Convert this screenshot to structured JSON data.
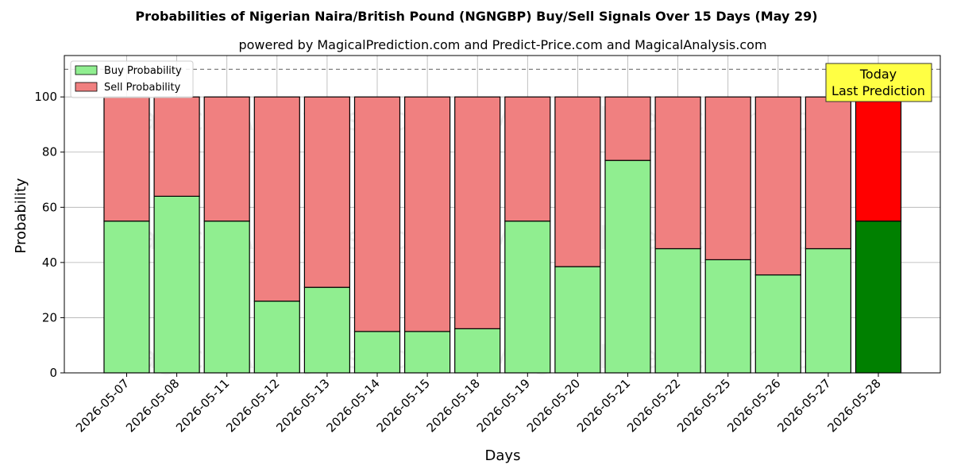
{
  "chart_data": {
    "type": "bar",
    "stacked": true,
    "title": "Probabilities of Nigerian Naira/British Pound (NGNGBP) Buy/Sell Signals Over 15 Days (May 29)",
    "subtitle": "powered by MagicalPrediction.com and Predict-Price.com and MagicalAnalysis.com",
    "xlabel": "Days",
    "ylabel": "Probability",
    "ylim": [
      0,
      115
    ],
    "yticks": [
      0,
      20,
      40,
      60,
      80,
      100
    ],
    "reference_line": 110,
    "grid": true,
    "legend_position": "top-left",
    "categories": [
      "2026-05-07",
      "2026-05-08",
      "2026-05-11",
      "2026-05-12",
      "2026-05-13",
      "2026-05-14",
      "2026-05-15",
      "2026-05-18",
      "2026-05-19",
      "2026-05-20",
      "2026-05-21",
      "2026-05-22",
      "2026-05-25",
      "2026-05-26",
      "2026-05-27",
      "2026-05-28"
    ],
    "series": [
      {
        "name": "Buy Probability",
        "color": "#90ee90",
        "highlight_color": "#008000",
        "values": [
          55,
          64,
          55,
          26,
          31,
          15,
          15,
          16,
          55,
          38.5,
          77,
          45,
          41,
          35.5,
          45,
          55
        ]
      },
      {
        "name": "Sell Probability",
        "color": "#f08080",
        "highlight_color": "#ff0000",
        "values": [
          45,
          36,
          45,
          74,
          69,
          85,
          85,
          84,
          45,
          61.5,
          23,
          55,
          59,
          64.5,
          55,
          45
        ]
      }
    ],
    "highlight_index": 15,
    "annotation": {
      "lines": [
        "Today",
        "Last Prediction"
      ],
      "background": "#ffff44"
    },
    "watermarks": [
      "MagicalAnalysis.com",
      "MagicalPrediction.com"
    ]
  }
}
